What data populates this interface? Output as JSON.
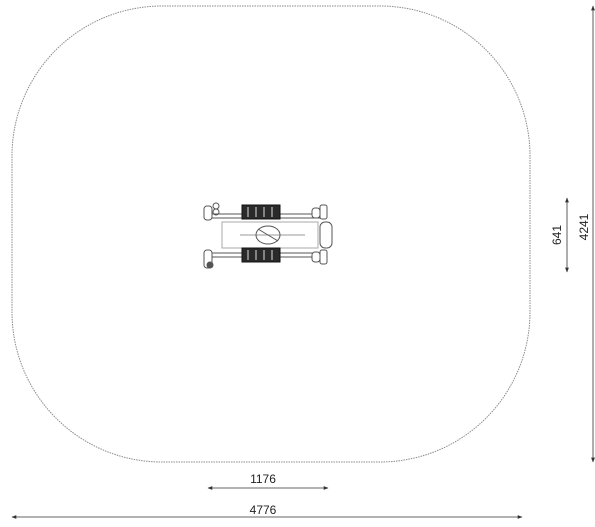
{
  "dimensions": {
    "equipment_width": "1176",
    "area_width": "4776",
    "equipment_depth": "641",
    "area_depth": "4241"
  },
  "colors": {
    "line": "#555555",
    "outline": "#888888",
    "dark": "#222222"
  }
}
